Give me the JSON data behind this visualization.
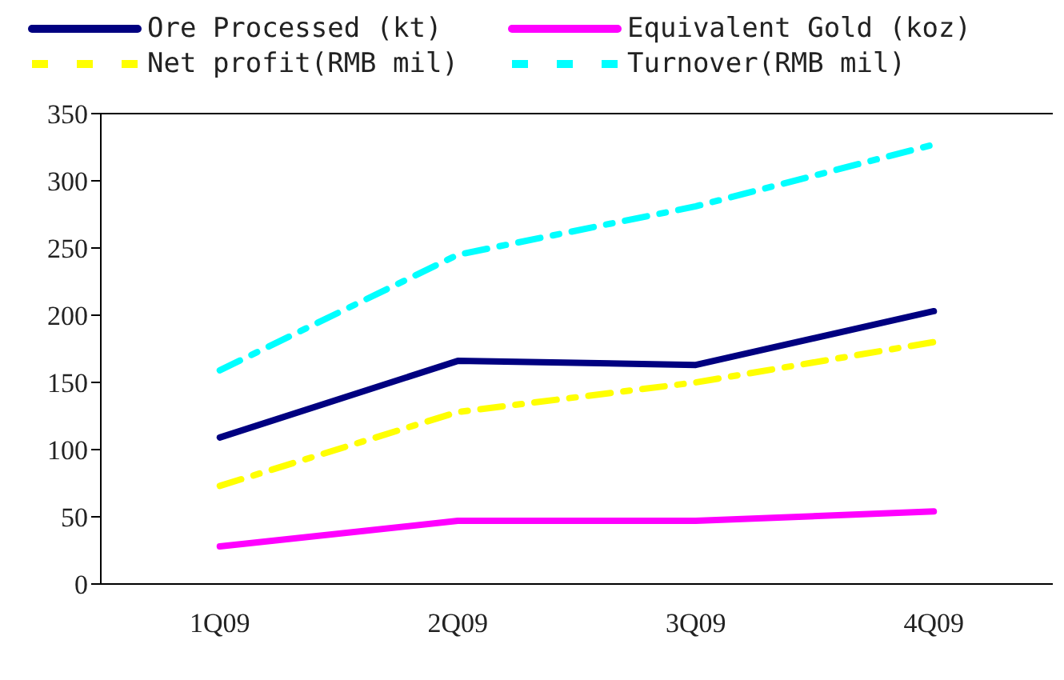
{
  "chart_data": {
    "type": "line",
    "categories": [
      "1Q09",
      "2Q09",
      "3Q09",
      "4Q09"
    ],
    "series": [
      {
        "name": "Ore Processed (kt)",
        "color": "#000080",
        "values": [
          109,
          166,
          163,
          203
        ],
        "line_style": "solid"
      },
      {
        "name": "Equivalent Gold (koz)",
        "color": "#ff00ff",
        "values": [
          28,
          47,
          47,
          54
        ],
        "line_style": "solid"
      },
      {
        "name": "Net profit(RMB mil)",
        "color": "#ffff00",
        "values": [
          73,
          128,
          150,
          180
        ],
        "line_style": "dashed"
      },
      {
        "name": "Turnover(RMB mil)",
        "color": "#00ffff",
        "values": [
          159,
          245,
          281,
          327
        ],
        "line_style": "dashed"
      }
    ],
    "ylim": [
      0,
      350
    ],
    "yticks": [
      0,
      50,
      100,
      150,
      200,
      250,
      300,
      350
    ],
    "grid": false,
    "legend": "top",
    "marker": "none"
  }
}
